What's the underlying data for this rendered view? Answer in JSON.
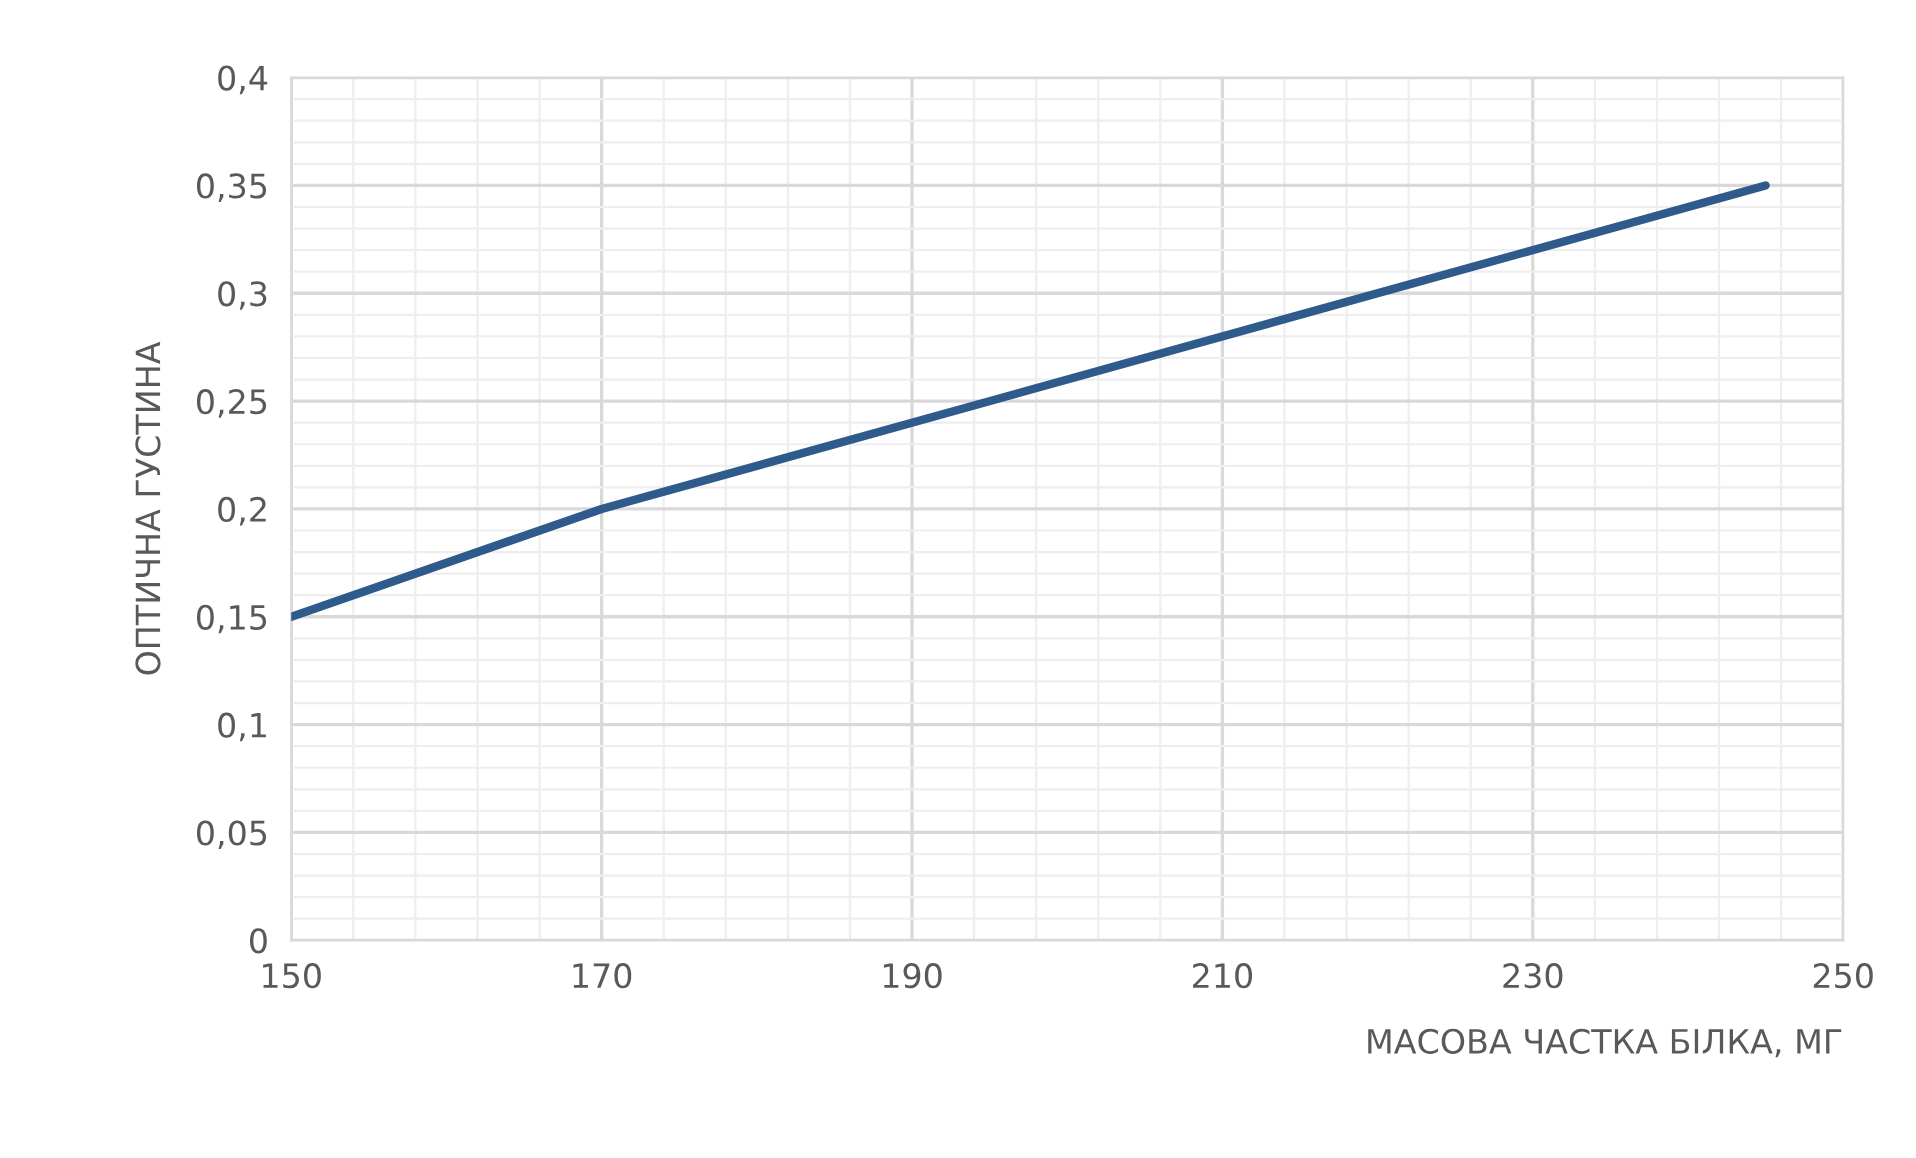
{
  "chart_data": {
    "type": "line",
    "xlabel": "МАСОВА ЧАСТКА БІЛКА, МГ",
    "ylabel": "ОПТИЧНА ГУСТИНА",
    "x": [
      150,
      170,
      245
    ],
    "series": [
      {
        "color": "#2e5a8c",
        "values": [
          0.15,
          0.2,
          0.35
        ]
      }
    ],
    "xlim": [
      150,
      250
    ],
    "xticks": [
      150,
      170,
      190,
      210,
      230,
      250
    ],
    "ylim": [
      0,
      0.4
    ],
    "yticks": [
      0,
      {
        "value": 0.05,
        "label": "0,05"
      },
      {
        "value": 0.1,
        "label": "0,1"
      },
      {
        "value": 0.15,
        "label": "0,15"
      },
      {
        "value": 0.2,
        "label": "0,2"
      },
      {
        "value": 0.25,
        "label": "0,25"
      },
      {
        "value": 0.3,
        "label": "0,3"
      },
      {
        "value": 0.35,
        "label": "0,35"
      },
      {
        "value": 0.4,
        "label": "0,4"
      }
    ],
    "grid": true,
    "marker": "none",
    "line_style": "solid"
  }
}
